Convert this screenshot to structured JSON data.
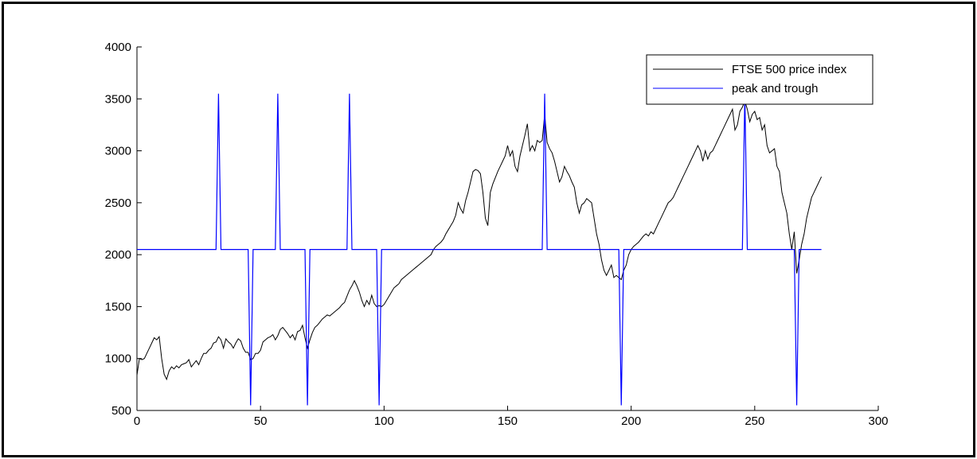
{
  "chart_data": {
    "type": "line",
    "title": "",
    "xlabel": "",
    "ylabel": "",
    "xlim": [
      0,
      300
    ],
    "ylim": [
      500,
      4000
    ],
    "xticks": [
      0,
      50,
      100,
      150,
      200,
      250,
      300
    ],
    "yticks": [
      500,
      1000,
      1500,
      2000,
      2500,
      3000,
      3500,
      4000
    ],
    "grid": false,
    "legend_position": "top-right",
    "series": [
      {
        "name": "FTSE 500 price index",
        "color": "#000000",
        "points": [
          [
            0,
            840
          ],
          [
            1,
            1000
          ],
          [
            2,
            990
          ],
          [
            3,
            1000
          ],
          [
            4,
            1050
          ],
          [
            5,
            1100
          ],
          [
            6,
            1150
          ],
          [
            7,
            1200
          ],
          [
            8,
            1180
          ],
          [
            9,
            1210
          ],
          [
            10,
            1000
          ],
          [
            11,
            850
          ],
          [
            12,
            800
          ],
          [
            13,
            880
          ],
          [
            14,
            920
          ],
          [
            15,
            900
          ],
          [
            16,
            930
          ],
          [
            17,
            910
          ],
          [
            18,
            940
          ],
          [
            19,
            950
          ],
          [
            20,
            960
          ],
          [
            21,
            990
          ],
          [
            22,
            920
          ],
          [
            23,
            950
          ],
          [
            24,
            980
          ],
          [
            25,
            940
          ],
          [
            26,
            1000
          ],
          [
            27,
            1050
          ],
          [
            28,
            1050
          ],
          [
            29,
            1080
          ],
          [
            30,
            1100
          ],
          [
            31,
            1150
          ],
          [
            32,
            1160
          ],
          [
            33,
            1210
          ],
          [
            34,
            1180
          ],
          [
            35,
            1100
          ],
          [
            36,
            1190
          ],
          [
            37,
            1160
          ],
          [
            38,
            1140
          ],
          [
            39,
            1100
          ],
          [
            40,
            1150
          ],
          [
            41,
            1190
          ],
          [
            42,
            1170
          ],
          [
            43,
            1100
          ],
          [
            44,
            1060
          ],
          [
            45,
            1060
          ],
          [
            46,
            990
          ],
          [
            47,
            1000
          ],
          [
            48,
            1050
          ],
          [
            49,
            1050
          ],
          [
            50,
            1080
          ],
          [
            51,
            1160
          ],
          [
            52,
            1180
          ],
          [
            53,
            1200
          ],
          [
            54,
            1210
          ],
          [
            55,
            1230
          ],
          [
            56,
            1180
          ],
          [
            57,
            1220
          ],
          [
            58,
            1280
          ],
          [
            59,
            1300
          ],
          [
            60,
            1270
          ],
          [
            61,
            1240
          ],
          [
            62,
            1200
          ],
          [
            63,
            1230
          ],
          [
            64,
            1180
          ],
          [
            65,
            1260
          ],
          [
            66,
            1270
          ],
          [
            67,
            1320
          ],
          [
            68,
            1200
          ],
          [
            69,
            1100
          ],
          [
            70,
            1180
          ],
          [
            71,
            1250
          ],
          [
            72,
            1300
          ],
          [
            73,
            1320
          ],
          [
            74,
            1350
          ],
          [
            75,
            1380
          ],
          [
            76,
            1400
          ],
          [
            77,
            1420
          ],
          [
            78,
            1410
          ],
          [
            79,
            1430
          ],
          [
            80,
            1450
          ],
          [
            81,
            1470
          ],
          [
            82,
            1490
          ],
          [
            83,
            1520
          ],
          [
            84,
            1540
          ],
          [
            85,
            1600
          ],
          [
            86,
            1660
          ],
          [
            87,
            1700
          ],
          [
            88,
            1750
          ],
          [
            89,
            1700
          ],
          [
            90,
            1640
          ],
          [
            91,
            1560
          ],
          [
            92,
            1500
          ],
          [
            93,
            1560
          ],
          [
            94,
            1520
          ],
          [
            95,
            1610
          ],
          [
            96,
            1530
          ],
          [
            97,
            1500
          ],
          [
            98,
            1510
          ],
          [
            99,
            1500
          ],
          [
            100,
            1520
          ],
          [
            101,
            1560
          ],
          [
            102,
            1600
          ],
          [
            103,
            1640
          ],
          [
            104,
            1680
          ],
          [
            105,
            1700
          ],
          [
            106,
            1720
          ],
          [
            107,
            1760
          ],
          [
            108,
            1780
          ],
          [
            109,
            1800
          ],
          [
            110,
            1820
          ],
          [
            111,
            1840
          ],
          [
            112,
            1860
          ],
          [
            113,
            1880
          ],
          [
            114,
            1900
          ],
          [
            115,
            1920
          ],
          [
            116,
            1940
          ],
          [
            117,
            1960
          ],
          [
            118,
            1980
          ],
          [
            119,
            2000
          ],
          [
            120,
            2050
          ],
          [
            121,
            2080
          ],
          [
            122,
            2100
          ],
          [
            123,
            2120
          ],
          [
            124,
            2150
          ],
          [
            125,
            2200
          ],
          [
            126,
            2240
          ],
          [
            127,
            2280
          ],
          [
            128,
            2320
          ],
          [
            129,
            2380
          ],
          [
            130,
            2500
          ],
          [
            131,
            2440
          ],
          [
            132,
            2400
          ],
          [
            133,
            2520
          ],
          [
            134,
            2600
          ],
          [
            135,
            2700
          ],
          [
            136,
            2800
          ],
          [
            137,
            2820
          ],
          [
            138,
            2810
          ],
          [
            139,
            2780
          ],
          [
            140,
            2600
          ],
          [
            141,
            2350
          ],
          [
            142,
            2280
          ],
          [
            143,
            2600
          ],
          [
            144,
            2680
          ],
          [
            145,
            2740
          ],
          [
            146,
            2800
          ],
          [
            147,
            2850
          ],
          [
            148,
            2900
          ],
          [
            149,
            2950
          ],
          [
            150,
            3050
          ],
          [
            151,
            2950
          ],
          [
            152,
            3000
          ],
          [
            153,
            2850
          ],
          [
            154,
            2800
          ],
          [
            155,
            2950
          ],
          [
            156,
            3050
          ],
          [
            157,
            3150
          ],
          [
            158,
            3260
          ],
          [
            159,
            3000
          ],
          [
            160,
            3050
          ],
          [
            161,
            3000
          ],
          [
            162,
            3100
          ],
          [
            163,
            3080
          ],
          [
            164,
            3100
          ],
          [
            165,
            3350
          ],
          [
            166,
            3080
          ],
          [
            167,
            3020
          ],
          [
            168,
            2980
          ],
          [
            169,
            2900
          ],
          [
            170,
            2800
          ],
          [
            171,
            2700
          ],
          [
            172,
            2750
          ],
          [
            173,
            2850
          ],
          [
            174,
            2800
          ],
          [
            175,
            2760
          ],
          [
            176,
            2700
          ],
          [
            177,
            2650
          ],
          [
            178,
            2500
          ],
          [
            179,
            2400
          ],
          [
            180,
            2480
          ],
          [
            181,
            2500
          ],
          [
            182,
            2540
          ],
          [
            183,
            2520
          ],
          [
            184,
            2500
          ],
          [
            185,
            2350
          ],
          [
            186,
            2200
          ],
          [
            187,
            2100
          ],
          [
            188,
            1950
          ],
          [
            189,
            1850
          ],
          [
            190,
            1800
          ],
          [
            191,
            1850
          ],
          [
            192,
            1900
          ],
          [
            193,
            1780
          ],
          [
            194,
            1800
          ],
          [
            195,
            1780
          ],
          [
            196,
            1760
          ],
          [
            197,
            1850
          ],
          [
            198,
            1900
          ],
          [
            199,
            2000
          ],
          [
            200,
            2050
          ],
          [
            201,
            2080
          ],
          [
            202,
            2100
          ],
          [
            203,
            2120
          ],
          [
            204,
            2150
          ],
          [
            205,
            2180
          ],
          [
            206,
            2200
          ],
          [
            207,
            2180
          ],
          [
            208,
            2220
          ],
          [
            209,
            2200
          ],
          [
            210,
            2250
          ],
          [
            211,
            2300
          ],
          [
            212,
            2350
          ],
          [
            213,
            2400
          ],
          [
            214,
            2450
          ],
          [
            215,
            2500
          ],
          [
            216,
            2520
          ],
          [
            217,
            2550
          ],
          [
            218,
            2600
          ],
          [
            219,
            2650
          ],
          [
            220,
            2700
          ],
          [
            221,
            2750
          ],
          [
            222,
            2800
          ],
          [
            223,
            2850
          ],
          [
            224,
            2900
          ],
          [
            225,
            2950
          ],
          [
            226,
            3000
          ],
          [
            227,
            3050
          ],
          [
            228,
            3000
          ],
          [
            229,
            2900
          ],
          [
            230,
            3000
          ],
          [
            231,
            2920
          ],
          [
            232,
            2980
          ],
          [
            233,
            3000
          ],
          [
            234,
            3050
          ],
          [
            235,
            3100
          ],
          [
            236,
            3150
          ],
          [
            237,
            3200
          ],
          [
            238,
            3250
          ],
          [
            239,
            3300
          ],
          [
            240,
            3350
          ],
          [
            241,
            3400
          ],
          [
            242,
            3200
          ],
          [
            243,
            3250
          ],
          [
            244,
            3380
          ],
          [
            245,
            3420
          ],
          [
            246,
            3480
          ],
          [
            247,
            3400
          ],
          [
            248,
            3280
          ],
          [
            249,
            3350
          ],
          [
            250,
            3380
          ],
          [
            251,
            3300
          ],
          [
            252,
            3320
          ],
          [
            253,
            3200
          ],
          [
            254,
            3250
          ],
          [
            255,
            3050
          ],
          [
            256,
            2980
          ],
          [
            257,
            3000
          ],
          [
            258,
            3020
          ],
          [
            259,
            2850
          ],
          [
            260,
            2800
          ],
          [
            261,
            2600
          ],
          [
            262,
            2500
          ],
          [
            263,
            2400
          ],
          [
            264,
            2200
          ],
          [
            265,
            2050
          ],
          [
            266,
            2220
          ],
          [
            267,
            1820
          ],
          [
            268,
            1950
          ],
          [
            269,
            2100
          ],
          [
            270,
            2200
          ],
          [
            271,
            2350
          ],
          [
            272,
            2450
          ],
          [
            273,
            2550
          ],
          [
            274,
            2600
          ],
          [
            275,
            2650
          ],
          [
            276,
            2700
          ],
          [
            277,
            2750
          ]
        ]
      },
      {
        "name": "peak and trough",
        "color": "#0000ff",
        "baseline": 2050,
        "xmax": 277,
        "peak_value": 3550,
        "trough_value": 550,
        "peaks": [
          33,
          57,
          86,
          165,
          246
        ],
        "troughs": [
          46,
          69,
          98,
          196,
          267
        ]
      }
    ]
  }
}
